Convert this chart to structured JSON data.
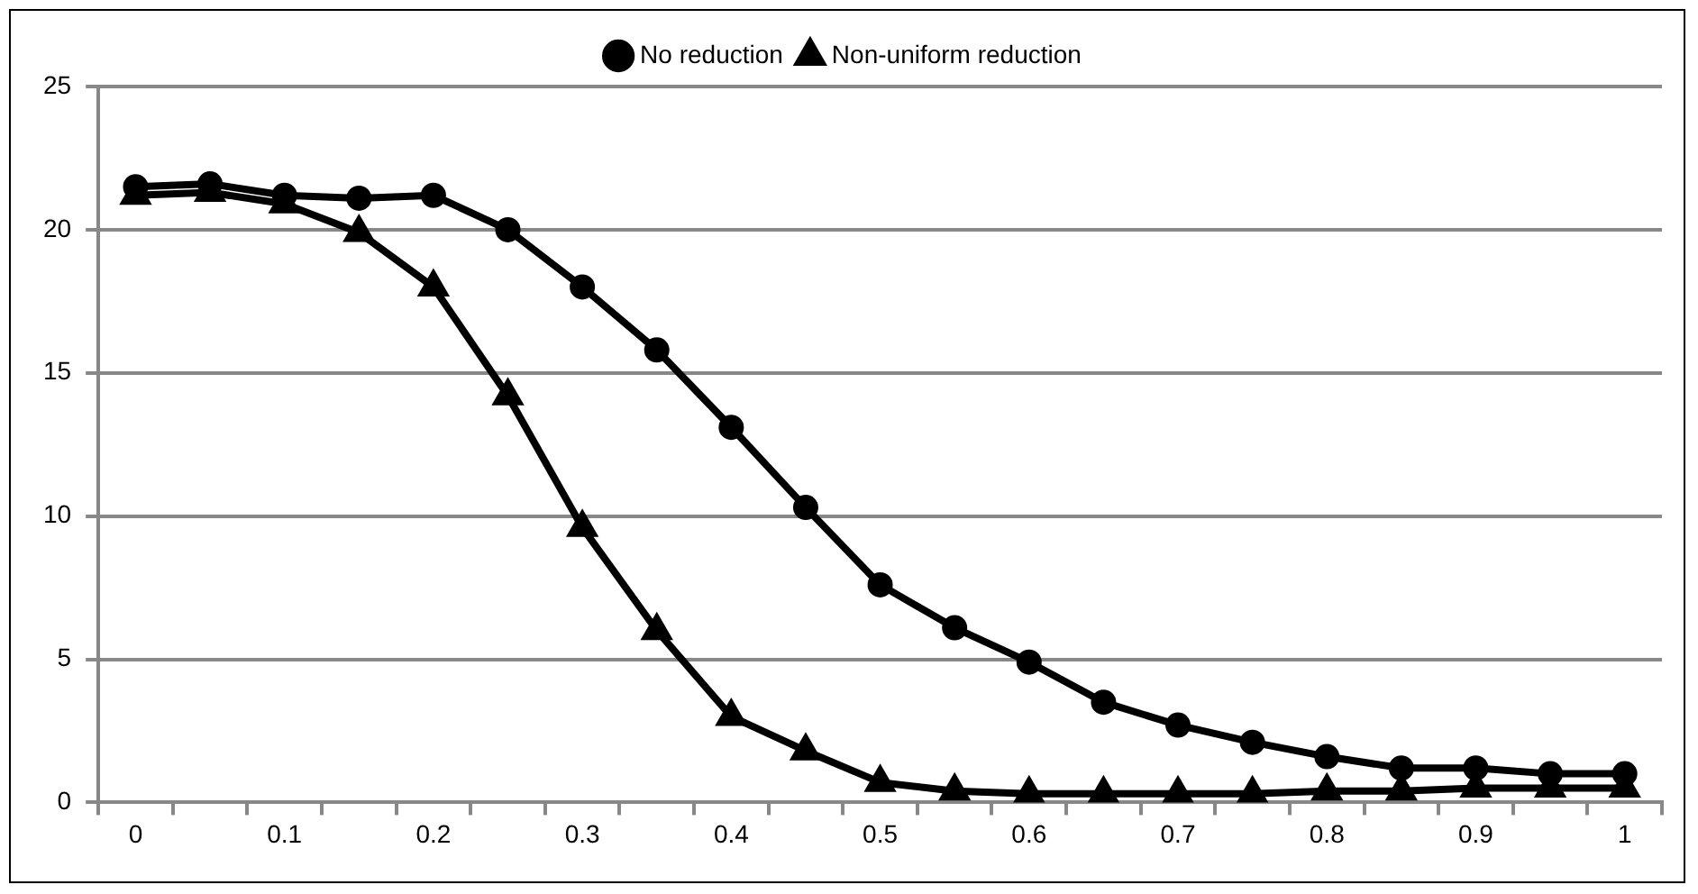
{
  "chart_data": {
    "type": "line",
    "categories": [
      "0",
      null,
      "0.1",
      null,
      "0.2",
      null,
      "0.3",
      null,
      "0.4",
      null,
      "0.5",
      null,
      "0.6",
      null,
      "0.7",
      null,
      "0.8",
      null,
      "0.9",
      null,
      "1"
    ],
    "series": [
      {
        "name": "No reduction",
        "color": "#000000",
        "marker": "circle",
        "values": [
          21.5,
          21.6,
          21.2,
          21.1,
          21.2,
          20,
          18,
          15.8,
          13.1,
          10.3,
          7.6,
          6.1,
          4.9,
          3.5,
          2.7,
          2.1,
          1.6,
          1.2,
          1.2,
          1.0,
          1.0
        ]
      },
      {
        "name": "Non-uniform reduction",
        "color": "#000000",
        "marker": "triangle",
        "values": [
          21.2,
          21.3,
          20.9,
          19.9,
          18,
          14.2,
          9.6,
          6,
          3,
          1.8,
          0.7,
          0.4,
          0.3,
          0.3,
          0.3,
          0.3,
          0.4,
          0.4,
          0.5,
          0.5,
          0.5
        ]
      }
    ],
    "ylim": [
      0,
      25
    ],
    "yticks": [
      0,
      5,
      10,
      15,
      20,
      25
    ],
    "grid": "y",
    "legend": "top",
    "line_style": "solid"
  }
}
